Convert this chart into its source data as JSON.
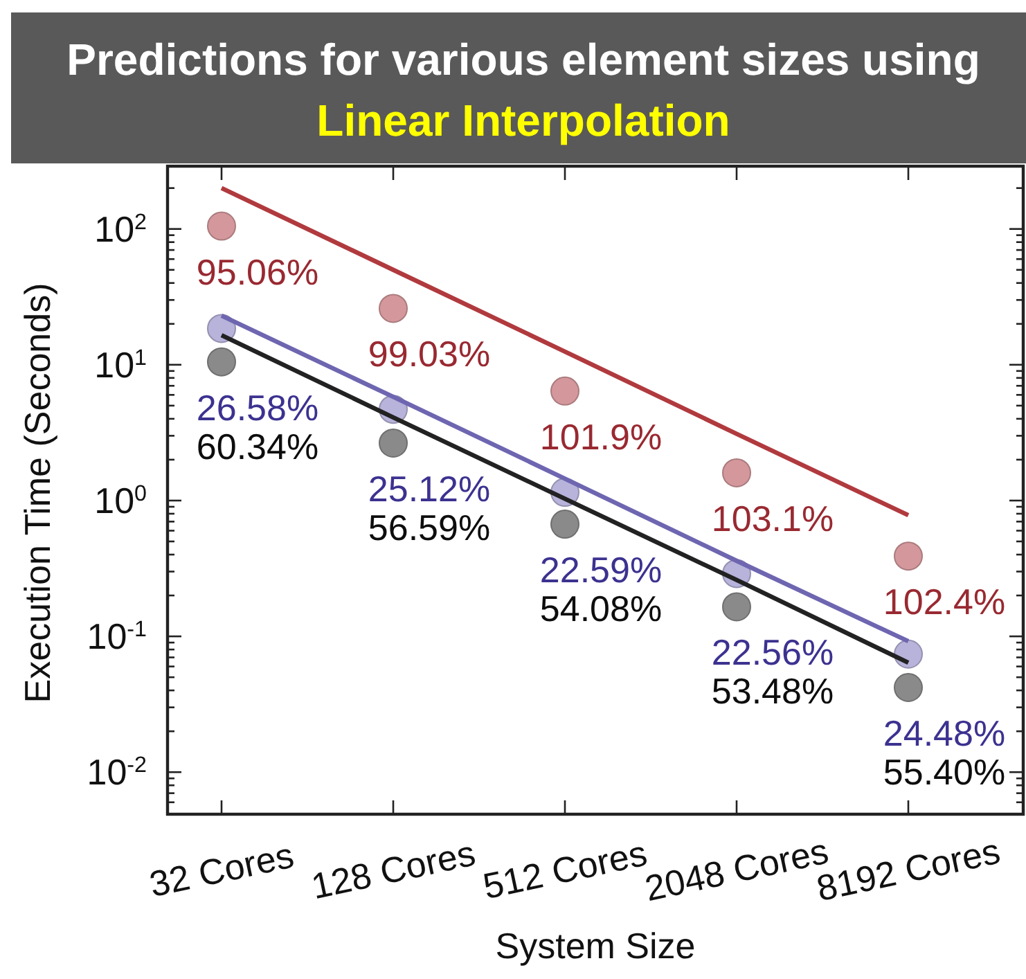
{
  "chart_data": {
    "type": "scatter",
    "title": "Predictions for various element sizes using",
    "subtitle": "Linear Interpolation",
    "xlabel": "System Size",
    "ylabel": "Execution Time (Seconds)",
    "categories": [
      "32 Cores",
      "128 Cores",
      "512 Cores",
      "2048 Cores",
      "8192 Cores"
    ],
    "log": "y",
    "ylim": [
      0.0049,
      290
    ],
    "yticks": [
      {
        "value": 0.006,
        "label": null
      },
      {
        "value": 0.007,
        "label": null
      },
      {
        "value": 0.008,
        "label": null
      },
      {
        "value": 0.009,
        "label": null
      },
      {
        "value": 0.01,
        "label": "10$^{-2}$"
      },
      {
        "value": 0.02,
        "label": null
      },
      {
        "value": 0.03,
        "label": null
      },
      {
        "value": 0.04,
        "label": null
      },
      {
        "value": 0.05,
        "label": null
      },
      {
        "value": 0.06,
        "label": null
      },
      {
        "value": 0.07,
        "label": null
      },
      {
        "value": 0.08,
        "label": null
      },
      {
        "value": 0.09,
        "label": null
      },
      {
        "value": 0.1,
        "label": "10$^{-1}$"
      },
      {
        "value": 0.2,
        "label": null
      },
      {
        "value": 0.3,
        "label": null
      },
      {
        "value": 0.4,
        "label": null
      },
      {
        "value": 0.5,
        "label": null
      },
      {
        "value": 0.6,
        "label": null
      },
      {
        "value": 0.7,
        "label": null
      },
      {
        "value": 0.8,
        "label": null
      },
      {
        "value": 0.9,
        "label": null
      },
      {
        "value": 1,
        "label": "10$^{0}$"
      },
      {
        "value": 2,
        "label": null
      },
      {
        "value": 3,
        "label": null
      },
      {
        "value": 4,
        "label": null
      },
      {
        "value": 5,
        "label": null
      },
      {
        "value": 6,
        "label": null
      },
      {
        "value": 7,
        "label": null
      },
      {
        "value": 8,
        "label": null
      },
      {
        "value": 9,
        "label": null
      },
      {
        "value": 10,
        "label": "10$^{1}$"
      },
      {
        "value": 20,
        "label": null
      },
      {
        "value": 30,
        "label": null
      },
      {
        "value": 40,
        "label": null
      },
      {
        "value": 50,
        "label": null
      },
      {
        "value": 60,
        "label": null
      },
      {
        "value": 70,
        "label": null
      },
      {
        "value": 80,
        "label": null
      },
      {
        "value": 90,
        "label": null
      },
      {
        "value": 100,
        "label": "10$^{2}$"
      },
      {
        "value": 200,
        "label": null
      }
    ],
    "series": [
      {
        "color": "#d4989c",
        "values": [
          105,
          26,
          6.4,
          1.6,
          0.39
        ]
      },
      {
        "color": "#b7b3da",
        "values": [
          18.5,
          4.7,
          1.15,
          0.29,
          0.074
        ]
      },
      {
        "color": "#8a8a8a",
        "values": [
          10.5,
          2.65,
          0.67,
          0.165,
          0.042
        ]
      },
      {
        "type": "line",
        "color": "#b03a3e",
        "values": [
          200,
          50,
          12.5,
          3.1,
          0.78
        ]
      },
      {
        "type": "line",
        "color": "#6e66b0",
        "values": [
          23,
          5.8,
          1.45,
          0.36,
          0.092
        ]
      },
      {
        "type": "line",
        "color": "#222222",
        "values": [
          16.5,
          4.1,
          1.03,
          0.26,
          0.064
        ]
      }
    ],
    "annotations": [
      {
        "text": "95.06%",
        "x": "32 Cores",
        "y": 105
      },
      {
        "text": "26.58%",
        "x": "32 Cores",
        "y": 18.5
      },
      {
        "text": "60.34%",
        "x": "32 Cores",
        "y": 10.5
      },
      {
        "text": "99.03%",
        "x": "128 Cores",
        "y": 26
      },
      {
        "text": "25.12%",
        "x": "128 Cores",
        "y": 4.7
      },
      {
        "text": "56.59%",
        "x": "128 Cores",
        "y": 2.65
      },
      {
        "text": "101.9%",
        "x": "512 Cores",
        "y": 6.4
      },
      {
        "text": "22.59%",
        "x": "512 Cores",
        "y": 1.15
      },
      {
        "text": "54.08%",
        "x": "512 Cores",
        "y": 0.67
      },
      {
        "text": "103.1%",
        "x": "2048 Cores",
        "y": 1.6
      },
      {
        "text": "22.56%",
        "x": "2048 Cores",
        "y": 0.29
      },
      {
        "text": "53.48%",
        "x": "2048 Cores",
        "y": 0.165
      },
      {
        "text": "102.4%",
        "x": "8192 Cores",
        "y": 0.39
      },
      {
        "text": "24.48%",
        "x": "8192 Cores",
        "y": 0.074
      },
      {
        "text": "55.40%",
        "x": "8192 Cores",
        "y": 0.042
      }
    ]
  }
}
